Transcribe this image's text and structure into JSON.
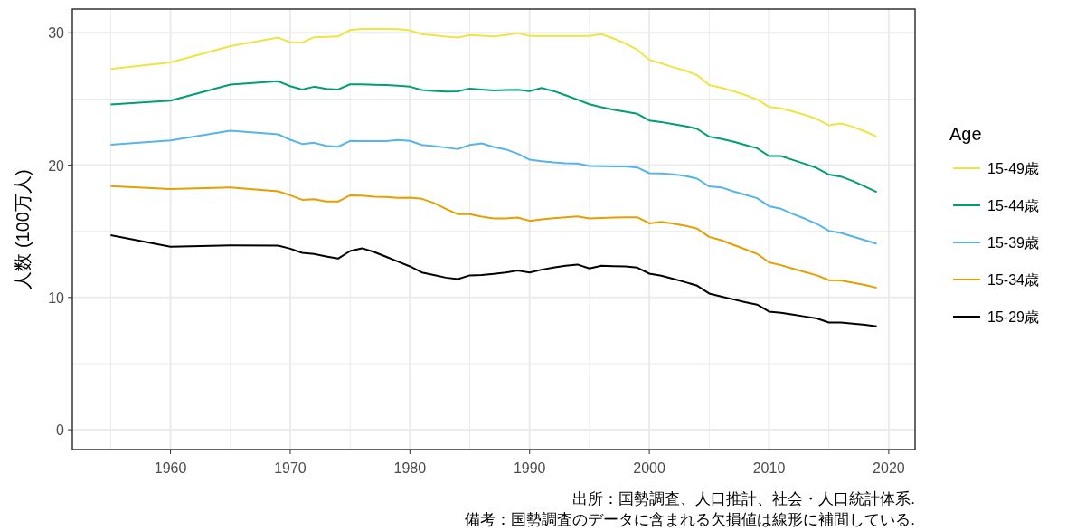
{
  "chart_data": {
    "type": "line",
    "ylabel": "人数 (100万人)",
    "legend_title": "Age",
    "x": [
      1955,
      1960,
      1965,
      1969,
      1970,
      1971,
      1972,
      1973,
      1974,
      1975,
      1976,
      1977,
      1978,
      1979,
      1980,
      1981,
      1982,
      1983,
      1984,
      1985,
      1986,
      1987,
      1988,
      1989,
      1990,
      1991,
      1992,
      1993,
      1994,
      1995,
      1996,
      1997,
      1998,
      1999,
      2000,
      2001,
      2002,
      2003,
      2004,
      2005,
      2006,
      2007,
      2008,
      2009,
      2010,
      2011,
      2012,
      2013,
      2014,
      2015,
      2016,
      2017,
      2018,
      2019
    ],
    "series": [
      {
        "name": "15-49歳",
        "color": "#f0e442",
        "values": [
          27.27,
          27.77,
          29.0,
          29.64,
          29.29,
          29.27,
          29.67,
          29.69,
          29.73,
          30.21,
          30.3,
          30.3,
          30.3,
          30.28,
          30.19,
          29.9,
          29.81,
          29.71,
          29.64,
          29.83,
          29.78,
          29.73,
          29.83,
          29.98,
          29.76,
          29.77,
          29.77,
          29.76,
          29.76,
          29.76,
          29.9,
          29.58,
          29.2,
          28.73,
          27.96,
          27.7,
          27.4,
          27.15,
          26.8,
          26.06,
          25.85,
          25.6,
          25.3,
          24.97,
          24.4,
          24.29,
          24.05,
          23.8,
          23.49,
          23.01,
          23.15,
          22.9,
          22.55,
          22.15
        ]
      },
      {
        "name": "15-44歳",
        "color": "#009e73",
        "values": [
          24.58,
          24.88,
          26.09,
          26.34,
          25.97,
          25.72,
          25.93,
          25.77,
          25.72,
          26.11,
          26.11,
          26.08,
          26.05,
          26.0,
          25.93,
          25.68,
          25.62,
          25.56,
          25.58,
          25.79,
          25.72,
          25.65,
          25.68,
          25.7,
          25.6,
          25.84,
          25.6,
          25.29,
          24.95,
          24.6,
          24.38,
          24.2,
          24.04,
          23.88,
          23.38,
          23.26,
          23.1,
          22.95,
          22.74,
          22.15,
          21.99,
          21.78,
          21.53,
          21.28,
          20.69,
          20.69,
          20.39,
          20.1,
          19.78,
          19.28,
          19.14,
          18.8,
          18.39,
          17.96
        ]
      },
      {
        "name": "15-39歳",
        "color": "#56b4e9",
        "values": [
          21.55,
          21.87,
          22.6,
          22.33,
          21.92,
          21.6,
          21.69,
          21.46,
          21.39,
          21.83,
          21.82,
          21.82,
          21.82,
          21.9,
          21.83,
          21.53,
          21.44,
          21.33,
          21.21,
          21.53,
          21.65,
          21.37,
          21.19,
          20.87,
          20.41,
          20.3,
          20.21,
          20.14,
          20.12,
          19.94,
          19.92,
          19.91,
          19.9,
          19.82,
          19.39,
          19.37,
          19.3,
          19.19,
          18.98,
          18.39,
          18.32,
          18.02,
          17.77,
          17.5,
          16.9,
          16.7,
          16.3,
          15.95,
          15.56,
          15.04,
          14.88,
          14.6,
          14.33,
          14.06
        ]
      },
      {
        "name": "15-34歳",
        "color": "#e69f00",
        "values": [
          18.41,
          18.2,
          18.32,
          18.02,
          17.72,
          17.38,
          17.42,
          17.25,
          17.25,
          17.72,
          17.7,
          17.62,
          17.6,
          17.52,
          17.54,
          17.45,
          17.14,
          16.7,
          16.29,
          16.29,
          16.11,
          15.97,
          15.97,
          16.04,
          15.79,
          15.9,
          15.98,
          16.06,
          16.13,
          15.97,
          16.01,
          16.04,
          16.06,
          16.06,
          15.6,
          15.72,
          15.58,
          15.43,
          15.2,
          14.58,
          14.33,
          13.99,
          13.65,
          13.3,
          12.65,
          12.44,
          12.17,
          11.92,
          11.67,
          11.3,
          11.28,
          11.12,
          10.94,
          10.73
        ]
      },
      {
        "name": "15-29歳",
        "color": "#000000",
        "values": [
          14.7,
          13.83,
          13.94,
          13.92,
          13.69,
          13.37,
          13.28,
          13.1,
          12.94,
          13.51,
          13.72,
          13.44,
          13.08,
          12.71,
          12.35,
          11.89,
          11.69,
          11.5,
          11.39,
          11.67,
          11.69,
          11.78,
          11.89,
          12.03,
          11.89,
          12.1,
          12.26,
          12.4,
          12.49,
          12.19,
          12.4,
          12.37,
          12.35,
          12.26,
          11.8,
          11.64,
          11.41,
          11.16,
          10.89,
          10.3,
          10.07,
          9.86,
          9.64,
          9.46,
          8.93,
          8.84,
          8.7,
          8.56,
          8.41,
          8.11,
          8.11,
          8.02,
          7.93,
          7.81
        ]
      }
    ],
    "xlim": [
      1951.8,
      2022.2
    ],
    "ylim": [
      -1.5,
      31.8
    ],
    "xticks": [
      1960,
      1970,
      1980,
      1990,
      2000,
      2010,
      2020
    ],
    "yticks": [
      0,
      10,
      20,
      30
    ],
    "grid": true,
    "legend": "right",
    "marker": "none",
    "line_style": "solid",
    "annotations": [
      "出所：国勢調査、人口推計、社会・人口統計体系.",
      "備考：国勢調査のデータに含まれる欠損値は線形に補間している."
    ]
  }
}
